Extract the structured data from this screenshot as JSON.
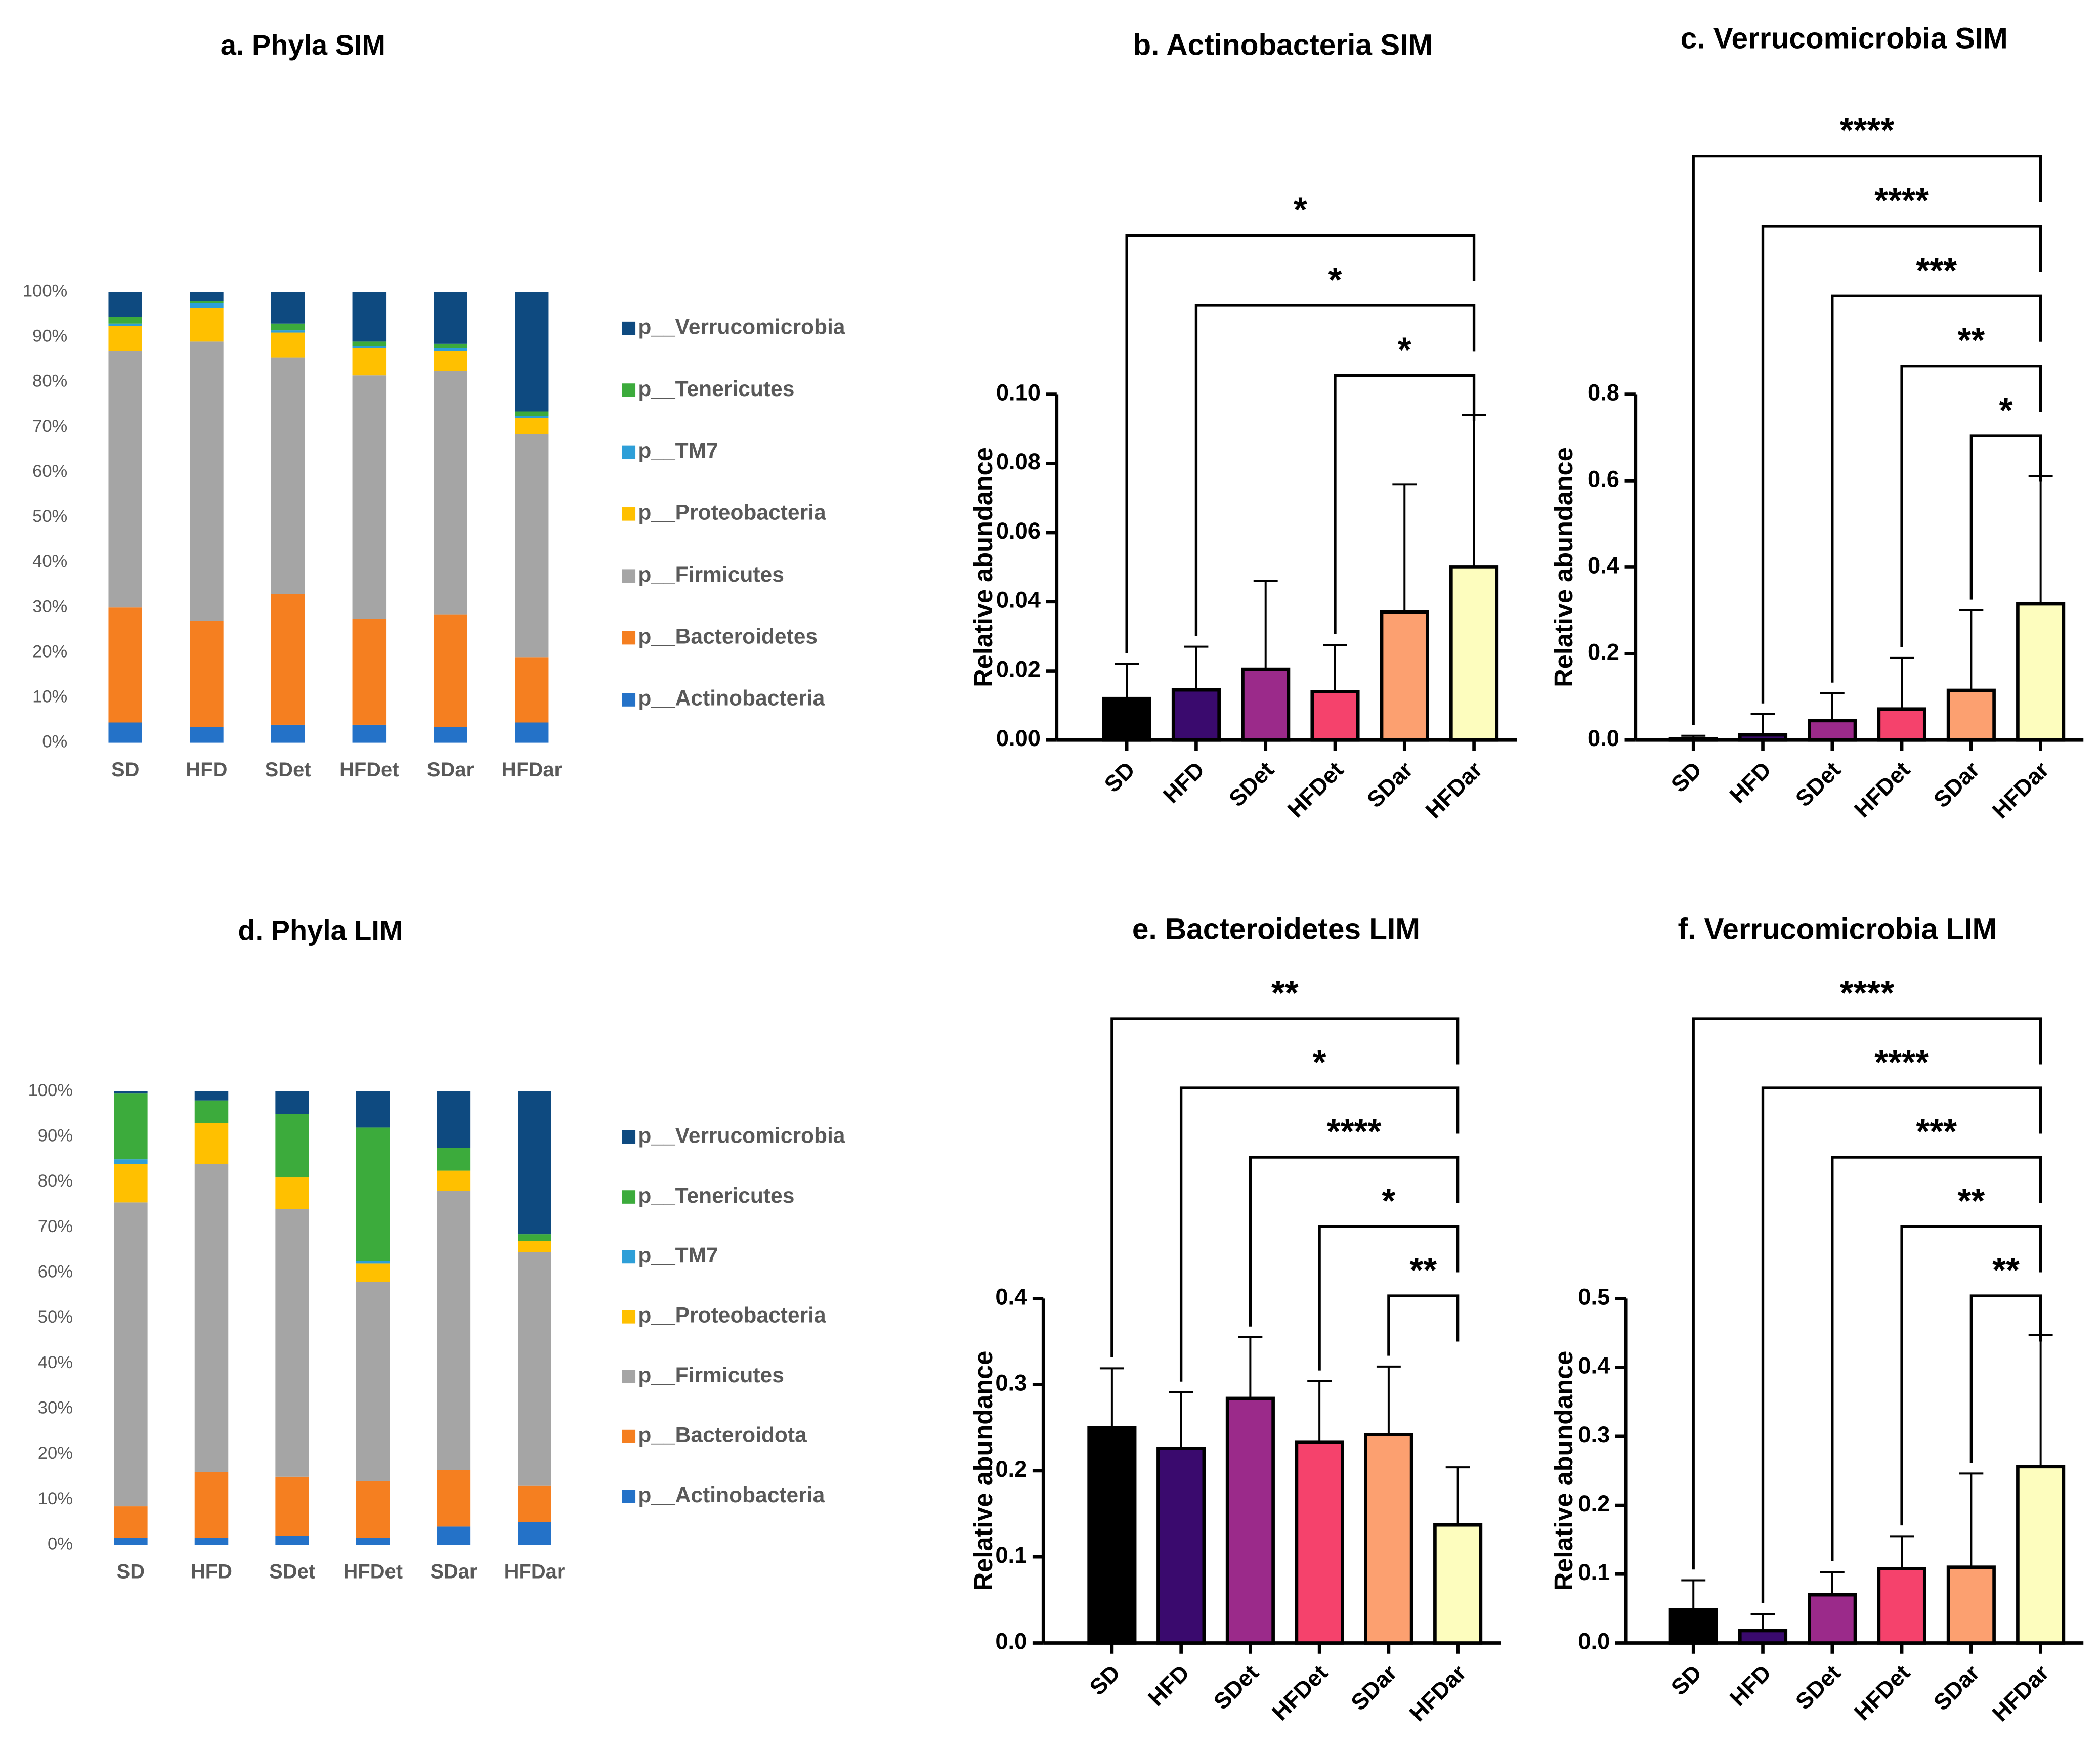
{
  "chart_data": [
    {
      "type": "stacked_bar",
      "title": "a. Phyla SIM",
      "categories": [
        "SD",
        "HFD",
        "SDet",
        "HFDet",
        "SDar",
        "HFDar"
      ],
      "series": [
        {
          "name": "p__Actinobacteria",
          "color": "#2472c8",
          "values": [
            4.5,
            3.5,
            4,
            4,
            3.5,
            4.5
          ]
        },
        {
          "name": "p__Bacteroidetes",
          "color": "#f57f20",
          "values": [
            25.5,
            23.5,
            29,
            23.5,
            25,
            14.5
          ]
        },
        {
          "name": "p__Firmicutes",
          "color": "#a5a5a5",
          "values": [
            57,
            62,
            52.5,
            54,
            54,
            49.5
          ]
        },
        {
          "name": "p__Proteobacteria",
          "color": "#ffc000",
          "values": [
            5.5,
            7.5,
            5.5,
            6,
            4.5,
            3.5
          ]
        },
        {
          "name": "p__TM7",
          "color": "#2e9fd8",
          "values": [
            0.5,
            1,
            0.5,
            0.5,
            0.5,
            0.5
          ]
        },
        {
          "name": "p__Tenericutes",
          "color": "#3cab3c",
          "values": [
            1.5,
            0.5,
            1.5,
            1,
            1,
            1
          ]
        },
        {
          "name": "p__Verrucomicrobia",
          "color": "#0e4a80",
          "values": [
            5.5,
            2,
            7,
            11,
            11.5,
            26.5
          ]
        }
      ],
      "ylim": [
        0,
        100
      ],
      "yticks": [
        {
          "value": 0,
          "label": "0%"
        },
        {
          "value": 10,
          "label": "10%"
        },
        {
          "value": 20,
          "label": "20%"
        },
        {
          "value": 30,
          "label": "30%"
        },
        {
          "value": 40,
          "label": "40%"
        },
        {
          "value": 50,
          "label": "50%"
        },
        {
          "value": 60,
          "label": "60%"
        },
        {
          "value": 70,
          "label": "70%"
        },
        {
          "value": 80,
          "label": "80%"
        },
        {
          "value": 90,
          "label": "90%"
        },
        {
          "value": 100,
          "label": "100%"
        }
      ],
      "legend": "right"
    },
    {
      "type": "bar",
      "title": "b. Actinobacteria SIM",
      "ylabel": "Relative abundance",
      "categories": [
        "SD",
        "HFD",
        "SDet",
        "HFDet",
        "SDar",
        "HFDar"
      ],
      "values": [
        0.012,
        0.0145,
        0.0205,
        0.014,
        0.037,
        0.05
      ],
      "errors": [
        0.01,
        0.0125,
        0.0255,
        0.0135,
        0.037,
        0.044
      ],
      "colors": [
        "#000000",
        "#3a0a6e",
        "#9b2a8a",
        "#f5426c",
        "#fca070",
        "#fdfdbe"
      ],
      "ylim": [
        0,
        0.1
      ],
      "yticks": [
        {
          "value": 0,
          "label": "0.00"
        },
        {
          "value": 0.02,
          "label": "0.02"
        },
        {
          "value": 0.04,
          "label": "0.04"
        },
        {
          "value": 0.06,
          "label": "0.06"
        },
        {
          "value": 0.08,
          "label": "0.08"
        },
        {
          "value": 0.1,
          "label": "0.10"
        }
      ],
      "comparisons": [
        {
          "groups": [
            "SD",
            "HFDar"
          ],
          "label": "*"
        },
        {
          "groups": [
            "HFD",
            "HFDar"
          ],
          "label": "*"
        },
        {
          "groups": [
            "HFDet",
            "HFDar"
          ],
          "label": "*"
        }
      ]
    },
    {
      "type": "bar",
      "title": "c. Verrucomicrobia SIM",
      "ylabel": "Relative abundance",
      "categories": [
        "SD",
        "HFD",
        "SDet",
        "HFDet",
        "SDar",
        "HFDar"
      ],
      "values": [
        0.003,
        0.012,
        0.045,
        0.072,
        0.115,
        0.315
      ],
      "errors": [
        0.007,
        0.048,
        0.063,
        0.118,
        0.185,
        0.295
      ],
      "colors": [
        "#000000",
        "#3a0a6e",
        "#9b2a8a",
        "#f5426c",
        "#fca070",
        "#fdfdbe"
      ],
      "ylim": [
        0,
        0.8
      ],
      "yticks": [
        {
          "value": 0,
          "label": "0.0"
        },
        {
          "value": 0.2,
          "label": "0.2"
        },
        {
          "value": 0.4,
          "label": "0.4"
        },
        {
          "value": 0.6,
          "label": "0.6"
        },
        {
          "value": 0.8,
          "label": "0.8"
        }
      ],
      "comparisons": [
        {
          "groups": [
            "SD",
            "HFDar"
          ],
          "label": "****"
        },
        {
          "groups": [
            "HFD",
            "HFDar"
          ],
          "label": "****"
        },
        {
          "groups": [
            "SDet",
            "HFDar"
          ],
          "label": "***"
        },
        {
          "groups": [
            "HFDet",
            "HFDar"
          ],
          "label": "**"
        },
        {
          "groups": [
            "SDar",
            "HFDar"
          ],
          "label": "*"
        }
      ]
    },
    {
      "type": "stacked_bar",
      "title": "d. Phyla LIM",
      "categories": [
        "SD",
        "HFD",
        "SDet",
        "HFDet",
        "SDar",
        "HFDar"
      ],
      "series": [
        {
          "name": "p__Actinobacteria",
          "color": "#2472c8",
          "values": [
            1.5,
            1.5,
            2,
            1.5,
            4,
            5
          ]
        },
        {
          "name": "p__Bacteroidota",
          "color": "#f57f20",
          "values": [
            7,
            14.5,
            13,
            12.5,
            12.5,
            8
          ]
        },
        {
          "name": "p__Firmicutes",
          "color": "#a5a5a5",
          "values": [
            67,
            68,
            59,
            44,
            61.5,
            51.5
          ]
        },
        {
          "name": "p__Proteobacteria",
          "color": "#ffc000",
          "values": [
            8.5,
            9,
            7,
            4,
            4.5,
            2.5
          ]
        },
        {
          "name": "p__TM7",
          "color": "#2e9fd8",
          "values": [
            1,
            0,
            0,
            0.5,
            0,
            0
          ]
        },
        {
          "name": "p__Tenericutes",
          "color": "#3cab3c",
          "values": [
            14.5,
            5,
            14,
            29.5,
            5,
            1.5
          ]
        },
        {
          "name": "p__Verrucomicrobia",
          "color": "#0e4a80",
          "values": [
            0.5,
            2,
            5,
            8,
            12.5,
            31.5
          ]
        }
      ],
      "ylim": [
        0,
        100
      ],
      "yticks": [
        {
          "value": 0,
          "label": "0%"
        },
        {
          "value": 10,
          "label": "10%"
        },
        {
          "value": 20,
          "label": "20%"
        },
        {
          "value": 30,
          "label": "30%"
        },
        {
          "value": 40,
          "label": "40%"
        },
        {
          "value": 50,
          "label": "50%"
        },
        {
          "value": 60,
          "label": "60%"
        },
        {
          "value": 70,
          "label": "70%"
        },
        {
          "value": 80,
          "label": "80%"
        },
        {
          "value": 90,
          "label": "90%"
        },
        {
          "value": 100,
          "label": "100%"
        }
      ],
      "legend": "right"
    },
    {
      "type": "bar",
      "title": "e. Bacteroidetes LIM",
      "ylabel": "Relative abundance",
      "categories": [
        "SD",
        "HFD",
        "SDet",
        "HFDet",
        "SDar",
        "HFDar"
      ],
      "values": [
        0.25,
        0.226,
        0.284,
        0.233,
        0.242,
        0.137
      ],
      "errors": [
        0.069,
        0.065,
        0.071,
        0.071,
        0.079,
        0.067
      ],
      "colors": [
        "#000000",
        "#3a0a6e",
        "#9b2a8a",
        "#f5426c",
        "#fca070",
        "#fdfdbe"
      ],
      "ylim": [
        0,
        0.4
      ],
      "yticks": [
        {
          "value": 0,
          "label": "0.0"
        },
        {
          "value": 0.1,
          "label": "0.1"
        },
        {
          "value": 0.2,
          "label": "0.2"
        },
        {
          "value": 0.3,
          "label": "0.3"
        },
        {
          "value": 0.4,
          "label": "0.4"
        }
      ],
      "comparisons": [
        {
          "groups": [
            "SD",
            "HFDar"
          ],
          "label": "**"
        },
        {
          "groups": [
            "HFD",
            "HFDar"
          ],
          "label": "*"
        },
        {
          "groups": [
            "SDet",
            "HFDar"
          ],
          "label": "****"
        },
        {
          "groups": [
            "HFDet",
            "HFDar"
          ],
          "label": "*"
        },
        {
          "groups": [
            "SDar",
            "HFDar"
          ],
          "label": "**"
        }
      ]
    },
    {
      "type": "bar",
      "title": "f. Verrucomicrobia LIM",
      "ylabel": "Relative abundance",
      "categories": [
        "SD",
        "HFD",
        "SDet",
        "HFDet",
        "SDar",
        "HFDar"
      ],
      "values": [
        0.048,
        0.018,
        0.07,
        0.108,
        0.11,
        0.256
      ],
      "errors": [
        0.043,
        0.024,
        0.033,
        0.047,
        0.136,
        0.191
      ],
      "colors": [
        "#000000",
        "#3a0a6e",
        "#9b2a8a",
        "#f5426c",
        "#fca070",
        "#fdfdbe"
      ],
      "ylim": [
        0,
        0.5
      ],
      "yticks": [
        {
          "value": 0,
          "label": "0.0"
        },
        {
          "value": 0.1,
          "label": "0.1"
        },
        {
          "value": 0.2,
          "label": "0.2"
        },
        {
          "value": 0.3,
          "label": "0.3"
        },
        {
          "value": 0.4,
          "label": "0.4"
        },
        {
          "value": 0.5,
          "label": "0.5"
        }
      ],
      "comparisons": [
        {
          "groups": [
            "SD",
            "HFDar"
          ],
          "label": "****"
        },
        {
          "groups": [
            "HFD",
            "HFDar"
          ],
          "label": "****"
        },
        {
          "groups": [
            "SDet",
            "HFDar"
          ],
          "label": "***"
        },
        {
          "groups": [
            "HFDet",
            "HFDar"
          ],
          "label": "**"
        },
        {
          "groups": [
            "SDar",
            "HFDar"
          ],
          "label": "**"
        }
      ]
    }
  ]
}
